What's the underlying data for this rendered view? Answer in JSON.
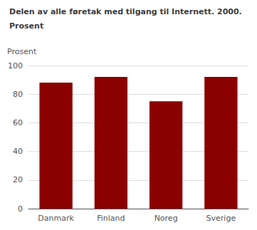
{
  "chart_data": {
    "type": "bar",
    "title": "Delen av alle føretak med tilgang til Internett. 2000.",
    "subtitle": "Prosent",
    "ylabel": "Prosent",
    "categories": [
      "Danmark",
      "Finland",
      "Noreg",
      "Sverige"
    ],
    "values": [
      88,
      92,
      75,
      92
    ],
    "color": "#8B0000",
    "ylim": [
      0,
      100
    ],
    "yticks": [
      0,
      20,
      40,
      60,
      80,
      100
    ],
    "grid": true
  }
}
